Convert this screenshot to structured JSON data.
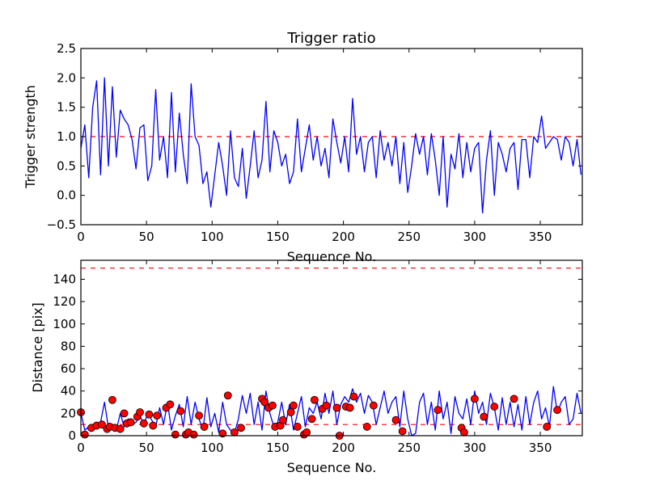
{
  "chart_data": [
    {
      "type": "line",
      "title": "Trigger ratio",
      "xlabel": "Sequence No.",
      "ylabel": "Trigger strength",
      "xlim": [
        0,
        382
      ],
      "ylim": [
        -0.5,
        2.5
      ],
      "xticks": [
        0,
        50,
        100,
        150,
        200,
        250,
        300,
        350
      ],
      "yticks": [
        -0.5,
        0.0,
        0.5,
        1.0,
        1.5,
        2.0,
        2.5
      ],
      "ytick_labels": [
        "−0.5",
        "0.0",
        "0.5",
        "1.0",
        "1.5",
        "2.0",
        "2.5"
      ],
      "threshold": 1.0,
      "x_step": 3,
      "series": [
        {
          "name": "trigger strength",
          "color": "#0000ff",
          "values": [
            0.8,
            1.2,
            0.3,
            1.5,
            1.95,
            0.35,
            2.0,
            0.5,
            1.85,
            0.65,
            1.45,
            1.3,
            1.2,
            0.95,
            0.45,
            1.15,
            1.2,
            0.25,
            0.5,
            1.8,
            0.6,
            1.0,
            0.3,
            1.75,
            0.4,
            1.4,
            0.7,
            0.2,
            1.9,
            1.0,
            0.85,
            0.2,
            0.4,
            -0.2,
            0.35,
            0.9,
            0.5,
            0.0,
            1.1,
            0.3,
            0.15,
            0.8,
            -0.05,
            0.5,
            1.1,
            0.3,
            0.6,
            1.6,
            0.4,
            1.1,
            0.9,
            0.5,
            0.7,
            0.2,
            0.4,
            1.3,
            0.4,
            0.8,
            1.2,
            0.6,
            1.0,
            0.5,
            0.8,
            0.3,
            1.3,
            0.9,
            0.55,
            1.0,
            0.4,
            1.65,
            0.7,
            1.0,
            0.4,
            0.9,
            1.0,
            0.3,
            1.1,
            0.6,
            0.9,
            0.5,
            1.0,
            0.2,
            0.9,
            0.05,
            0.5,
            1.05,
            0.7,
            1.0,
            0.35,
            1.05,
            0.6,
            0.0,
            1.0,
            -0.2,
            0.7,
            0.45,
            1.05,
            0.3,
            0.9,
            0.4,
            0.8,
            0.9,
            -0.3,
            0.6,
            1.1,
            0.0,
            0.9,
            0.7,
            0.4,
            0.8,
            0.9,
            0.1,
            0.95,
            0.95,
            0.3,
            1.0,
            0.9,
            1.35,
            0.8,
            0.9,
            1.0,
            0.95,
            0.6,
            1.0,
            0.9,
            0.5,
            0.95,
            0.35
          ]
        }
      ]
    },
    {
      "type": "line",
      "title": "",
      "xlabel": "Sequence No.",
      "ylabel": "Distance [pix]",
      "xlim": [
        0,
        382
      ],
      "ylim": [
        0,
        157
      ],
      "xticks": [
        0,
        50,
        100,
        150,
        200,
        250,
        300,
        350
      ],
      "yticks": [
        0,
        20,
        40,
        60,
        80,
        100,
        120,
        140
      ],
      "ytick_labels": [
        "0",
        "20",
        "40",
        "60",
        "80",
        "100",
        "120",
        "140"
      ],
      "thresholds": [
        150,
        10
      ],
      "x_step": 3,
      "series": [
        {
          "name": "distance",
          "color": "#0000ff",
          "values": [
            20,
            5,
            8,
            10,
            6,
            12,
            30,
            7,
            8,
            5,
            20,
            8,
            15,
            10,
            12,
            18,
            10,
            20,
            14,
            8,
            25,
            10,
            30,
            5,
            18,
            28,
            8,
            35,
            10,
            30,
            15,
            5,
            34,
            8,
            20,
            3,
            30,
            10,
            5,
            2,
            15,
            36,
            20,
            38,
            10,
            30,
            5,
            40,
            20,
            8,
            12,
            30,
            10,
            28,
            5,
            20,
            35,
            8,
            25,
            20,
            30,
            15,
            38,
            20,
            40,
            10,
            28,
            35,
            30,
            42,
            30,
            38,
            20,
            36,
            30,
            10,
            25,
            40,
            20,
            30,
            35,
            8,
            40,
            15,
            0,
            2,
            30,
            38,
            10,
            30,
            5,
            40,
            15,
            30,
            2,
            35,
            20,
            15,
            33,
            10,
            40,
            20,
            30,
            10,
            38,
            25,
            5,
            34,
            10,
            30,
            8,
            28,
            5,
            35,
            10,
            30,
            40,
            15,
            25,
            8,
            44,
            20,
            30,
            35,
            10,
            15,
            38,
            20
          ]
        }
      ],
      "markers": {
        "name": "detections",
        "color": "#ff0000",
        "points": [
          [
            0,
            21
          ],
          [
            3,
            1
          ],
          [
            8,
            7
          ],
          [
            12,
            9
          ],
          [
            16,
            10
          ],
          [
            20,
            6
          ],
          [
            22,
            8
          ],
          [
            24,
            32
          ],
          [
            26,
            7
          ],
          [
            30,
            6
          ],
          [
            33,
            20
          ],
          [
            35,
            11
          ],
          [
            38,
            12
          ],
          [
            43,
            17
          ],
          [
            45,
            21
          ],
          [
            48,
            11
          ],
          [
            52,
            19
          ],
          [
            55,
            9
          ],
          [
            58,
            18
          ],
          [
            65,
            25
          ],
          [
            68,
            28
          ],
          [
            72,
            1
          ],
          [
            76,
            22
          ],
          [
            80,
            1
          ],
          [
            82,
            3
          ],
          [
            86,
            1
          ],
          [
            90,
            18
          ],
          [
            94,
            8
          ],
          [
            108,
            2
          ],
          [
            112,
            36
          ],
          [
            117,
            3
          ],
          [
            122,
            7
          ],
          [
            138,
            33
          ],
          [
            140,
            30
          ],
          [
            143,
            25
          ],
          [
            146,
            27
          ],
          [
            148,
            8
          ],
          [
            152,
            9
          ],
          [
            154,
            14
          ],
          [
            160,
            21
          ],
          [
            162,
            27
          ],
          [
            165,
            8
          ],
          [
            170,
            1
          ],
          [
            172,
            3
          ],
          [
            176,
            15
          ],
          [
            178,
            32
          ],
          [
            184,
            24
          ],
          [
            187,
            27
          ],
          [
            195,
            25
          ],
          [
            197,
            0
          ],
          [
            202,
            26
          ],
          [
            205,
            25
          ],
          [
            208,
            35
          ],
          [
            218,
            8
          ],
          [
            223,
            27
          ],
          [
            240,
            14
          ],
          [
            245,
            4
          ],
          [
            272,
            23
          ],
          [
            290,
            7
          ],
          [
            292,
            3
          ],
          [
            300,
            33
          ],
          [
            307,
            17
          ],
          [
            315,
            26
          ],
          [
            330,
            33
          ],
          [
            355,
            8
          ],
          [
            363,
            23
          ]
        ]
      }
    }
  ]
}
